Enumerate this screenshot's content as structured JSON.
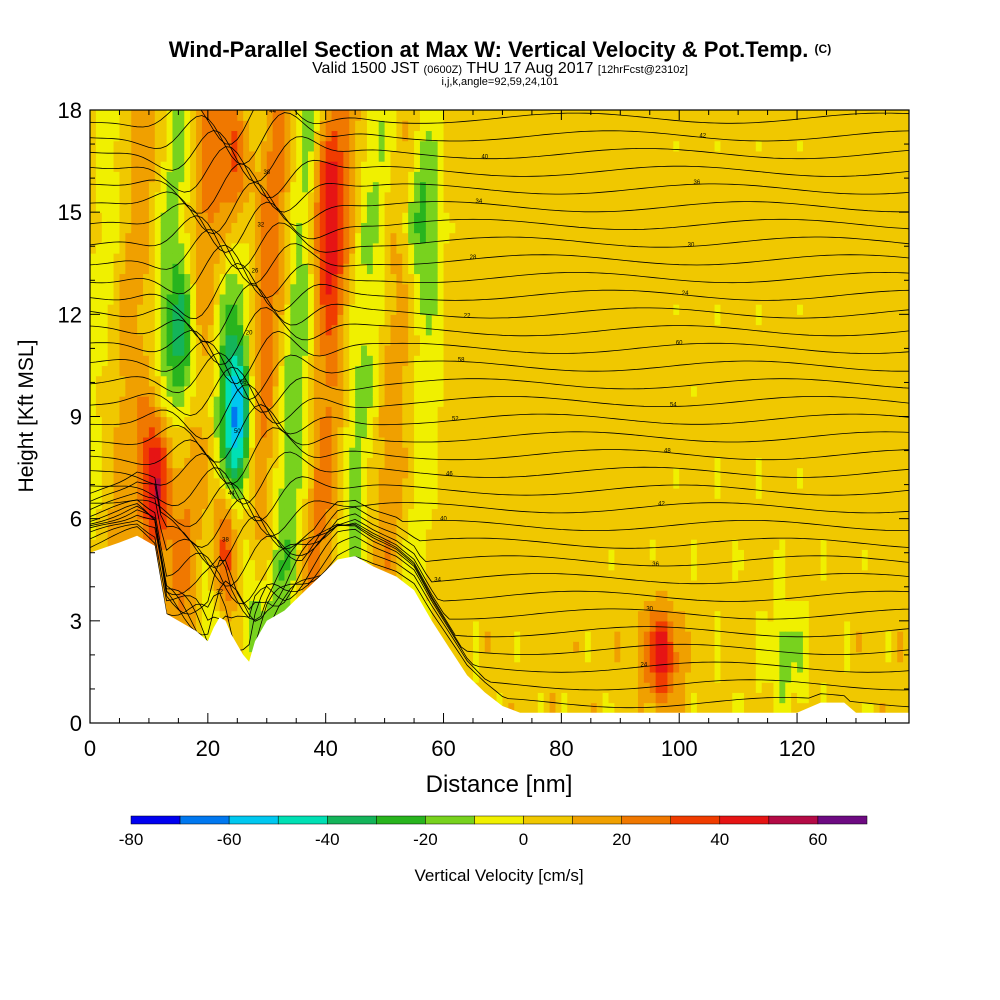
{
  "header": {
    "title": "Wind-Parallel Section at Max W: Vertical Velocity & Pot.Temp.",
    "copyright": "(C)",
    "valid_prefix": "Valid 1500 JST",
    "valid_utc": "(0600Z)",
    "valid_date": "THU 17 Aug 2017",
    "forecast": "[12hrFcst@2310z]",
    "indices": "i,j,k,angle=92,59,24,101"
  },
  "chart_data": {
    "type": "heatmap",
    "title": "Wind-Parallel Section at Max W: Vertical Velocity & Pot.Temp.",
    "xlabel": "Distance [nm]",
    "ylabel": "Height [Kft MSL]",
    "xlim": [
      0,
      139
    ],
    "ylim": [
      0,
      18
    ],
    "xticks": [
      "0",
      "20",
      "40",
      "60",
      "80",
      "100",
      "120"
    ],
    "yticks": [
      "0",
      "3",
      "6",
      "9",
      "12",
      "15",
      "18"
    ],
    "colorbar": {
      "label": "Vertical Velocity [cm/s]",
      "ticks": [
        "-80",
        "-60",
        "-40",
        "-20",
        "0",
        "20",
        "40",
        "60"
      ],
      "bounds": [
        -80,
        -70,
        -60,
        -50,
        -40,
        -30,
        -20,
        -10,
        0,
        10,
        20,
        30,
        40,
        50,
        60,
        70
      ],
      "colors": [
        "#0000f0",
        "#0078f0",
        "#00c8f0",
        "#00e0b4",
        "#14b45a",
        "#28b41e",
        "#78d21e",
        "#f0f000",
        "#f0c800",
        "#f0a000",
        "#f07800",
        "#f03c00",
        "#e61414",
        "#b40a46",
        "#6e0a82"
      ]
    },
    "terrain": [
      [
        0,
        5.0
      ],
      [
        5,
        5.3
      ],
      [
        8,
        5.5
      ],
      [
        11,
        5.2
      ],
      [
        12,
        4.2
      ],
      [
        13,
        3.2
      ],
      [
        15,
        3.0
      ],
      [
        18,
        2.7
      ],
      [
        20,
        2.4
      ],
      [
        21,
        2.8
      ],
      [
        22,
        3.1
      ],
      [
        23,
        3.0
      ],
      [
        24,
        2.6
      ],
      [
        25,
        2.3
      ],
      [
        26,
        2.0
      ],
      [
        27,
        1.8
      ],
      [
        28,
        2.4
      ],
      [
        30,
        3.0
      ],
      [
        33,
        3.3
      ],
      [
        36,
        3.8
      ],
      [
        39,
        4.3
      ],
      [
        42,
        4.8
      ],
      [
        45,
        4.9
      ],
      [
        48,
        4.6
      ],
      [
        52,
        4.3
      ],
      [
        55,
        3.9
      ],
      [
        58,
        3.0
      ],
      [
        61,
        2.2
      ],
      [
        64,
        1.4
      ],
      [
        67,
        0.9
      ],
      [
        70,
        0.5
      ],
      [
        73,
        0.3
      ],
      [
        80,
        0.3
      ],
      [
        100,
        0.3
      ],
      [
        120,
        0.3
      ],
      [
        124,
        0.6
      ],
      [
        128,
        0.6
      ],
      [
        130,
        0.3
      ],
      [
        139,
        0.3
      ]
    ],
    "theta_contour_labels": [
      "20",
      "22",
      "24",
      "26",
      "28",
      "30",
      "32",
      "34",
      "36",
      "38",
      "40",
      "42",
      "44",
      "46",
      "48",
      "50",
      "52",
      "54",
      "56",
      "58",
      "60"
    ],
    "features": [
      {
        "x": 11,
        "z": 7.0,
        "w": 60
      },
      {
        "x": 23,
        "z": 5.5,
        "w": 50
      },
      {
        "x": 25,
        "z": 16.5,
        "w": 45
      },
      {
        "x": 40,
        "z": 15.0,
        "w": 40
      },
      {
        "x": 25,
        "z": 8.5,
        "w": -60
      },
      {
        "x": 27,
        "z": 3.0,
        "w": -40
      },
      {
        "x": 16,
        "z": 11.0,
        "w": -40
      },
      {
        "x": 56,
        "z": 15.0,
        "w": -30
      },
      {
        "x": 97,
        "z": 2.0,
        "w": 40
      },
      {
        "x": 118,
        "z": 2.0,
        "w": -20
      }
    ]
  }
}
